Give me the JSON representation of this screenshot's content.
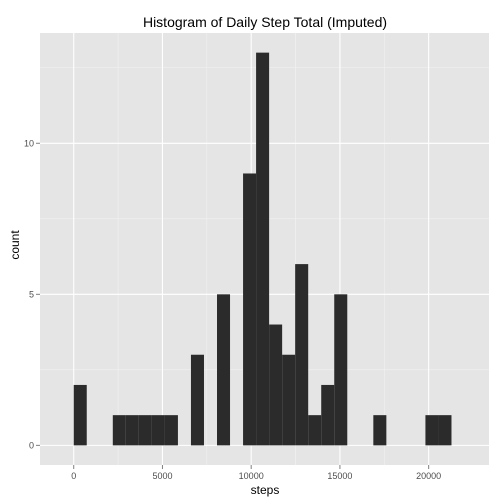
{
  "chart_data": {
    "type": "bar",
    "title": "Histogram of Daily Step Total (Imputed)",
    "xlabel": "steps",
    "ylabel": "count",
    "bin_width": 734,
    "bins": [
      {
        "x_start": 0,
        "x_end": 734,
        "count": 2
      },
      {
        "x_start": 734,
        "x_end": 1468,
        "count": 0
      },
      {
        "x_start": 1468,
        "x_end": 2202,
        "count": 0
      },
      {
        "x_start": 2202,
        "x_end": 2936,
        "count": 1
      },
      {
        "x_start": 2936,
        "x_end": 3670,
        "count": 1
      },
      {
        "x_start": 3670,
        "x_end": 4404,
        "count": 1
      },
      {
        "x_start": 4404,
        "x_end": 5138,
        "count": 1
      },
      {
        "x_start": 5138,
        "x_end": 5872,
        "count": 1
      },
      {
        "x_start": 5872,
        "x_end": 6606,
        "count": 0
      },
      {
        "x_start": 6606,
        "x_end": 7340,
        "count": 3
      },
      {
        "x_start": 7340,
        "x_end": 8074,
        "count": 0
      },
      {
        "x_start": 8074,
        "x_end": 8808,
        "count": 5
      },
      {
        "x_start": 8808,
        "x_end": 9542,
        "count": 0
      },
      {
        "x_start": 9542,
        "x_end": 10276,
        "count": 9
      },
      {
        "x_start": 10276,
        "x_end": 11010,
        "count": 13
      },
      {
        "x_start": 11010,
        "x_end": 11744,
        "count": 4
      },
      {
        "x_start": 11744,
        "x_end": 12478,
        "count": 3
      },
      {
        "x_start": 12478,
        "x_end": 13212,
        "count": 6
      },
      {
        "x_start": 13212,
        "x_end": 13946,
        "count": 1
      },
      {
        "x_start": 13946,
        "x_end": 14680,
        "count": 2
      },
      {
        "x_start": 14680,
        "x_end": 15414,
        "count": 5
      },
      {
        "x_start": 15414,
        "x_end": 16148,
        "count": 0
      },
      {
        "x_start": 16148,
        "x_end": 16882,
        "count": 0
      },
      {
        "x_start": 16882,
        "x_end": 17616,
        "count": 1
      },
      {
        "x_start": 17616,
        "x_end": 18350,
        "count": 0
      },
      {
        "x_start": 18350,
        "x_end": 19084,
        "count": 0
      },
      {
        "x_start": 19084,
        "x_end": 19818,
        "count": 0
      },
      {
        "x_start": 19818,
        "x_end": 20552,
        "count": 1
      },
      {
        "x_start": 20552,
        "x_end": 21286,
        "count": 1
      }
    ],
    "x_ticks": [
      0,
      5000,
      10000,
      15000,
      20000
    ],
    "y_ticks": [
      0,
      5,
      10
    ],
    "xlim": [
      -1900,
      23400
    ],
    "ylim": [
      -0.65,
      13.65
    ],
    "grid": true,
    "bar_color": "#2b2b2b",
    "panel_color": "#e5e5e5",
    "grid_color": "#ffffff"
  }
}
